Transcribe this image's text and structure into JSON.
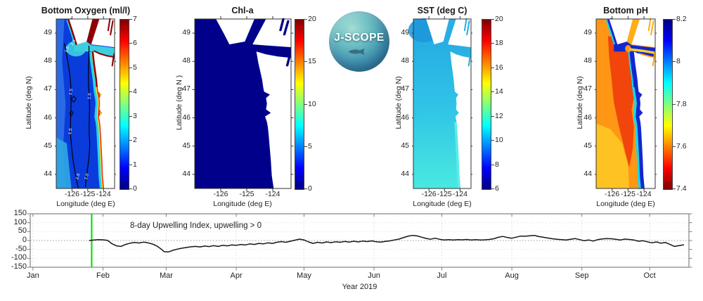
{
  "figure": {
    "background": "#ffffff"
  },
  "logo": {
    "label": "J-SCOPE"
  },
  "panels": [
    {
      "key": "oxygen",
      "title": "Bottom Oxygen (ml/l)",
      "ylabel": "Latitude (deg N)",
      "xlabel": "Longitude (deg E)",
      "yticks": [
        "49",
        "48",
        "47",
        "46",
        "45",
        "44"
      ],
      "xticks": [
        "-126",
        "-125",
        "-124"
      ],
      "colorbar": {
        "labels": [
          "7",
          "6",
          "5",
          "4",
          "3",
          "2",
          "1",
          "0"
        ],
        "min": 0,
        "max": 7,
        "colormap": "jet",
        "reversed": false
      },
      "contour_label": "1.5",
      "palette": {
        "deep": "#0a3cdc",
        "offshore": "#2f6fe6",
        "corner": "#2fa8e2",
        "shelf_cyan": "#24d6e8",
        "shelf_yellow": "#ffe22a",
        "coast_red": "#f03810",
        "north_darkred": "#8f0000",
        "strait": "#3ccfe0",
        "georgia": "#8f0000",
        "contour": "#000000",
        "contour_text": "#ffffff"
      }
    },
    {
      "key": "chl",
      "title": "Chl-a",
      "ylabel": "Latitude (deg N )",
      "xlabel": "Longitude (deg E)",
      "yticks": [
        "49",
        "48",
        "47",
        "46",
        "45",
        "44"
      ],
      "xticks": [
        "-126",
        "-125",
        "-124"
      ],
      "colorbar": {
        "labels": [
          "20",
          "15",
          "10",
          "5",
          "0"
        ],
        "min": 0,
        "max": 20,
        "colormap": "jet",
        "reversed": false
      },
      "palette": {
        "deep": "#00008b"
      }
    },
    {
      "key": "sst",
      "title": "SST (deg C)",
      "ylabel": "Latitude (deg N)",
      "xlabel": "Longitude (deg E)",
      "yticks": [
        "49",
        "48",
        "47",
        "46",
        "45",
        "44"
      ],
      "xticks": [
        "-126",
        "-125",
        "-124"
      ],
      "colorbar": {
        "labels": [
          "20",
          "18",
          "16",
          "14",
          "12",
          "10",
          "8",
          "6"
        ],
        "min": 6,
        "max": 20,
        "colormap": "jet",
        "reversed": false
      },
      "palette": {
        "north": "#23a5e4",
        "mid": "#31c6e6",
        "south": "#49e9e0",
        "northwest_patch": "#1d97da",
        "nearshore_south": "#5aece8",
        "channels": "#29ade6"
      }
    },
    {
      "key": "ph",
      "title": "Bottom pH",
      "ylabel": "Latitude (deg N)",
      "xlabel": "Longitude (deg E)",
      "yticks": [
        "49",
        "48",
        "47",
        "46",
        "45",
        "44"
      ],
      "xticks": [
        "-126",
        "-125",
        "-124"
      ],
      "colorbar": {
        "labels": [
          "8.2",
          "8",
          "7.8",
          "7.6",
          "7.4"
        ],
        "min": 7.4,
        "max": 8.2,
        "colormap": "jet",
        "reversed": true
      },
      "palette": {
        "offshore_orange": "#ff9714",
        "southwest_yellow": "#ffc424",
        "mid_red": "#f1450c",
        "transition_cyan": "#18d8e8",
        "coast_blue": "#1326cf",
        "strait_stripe": "#ffd224",
        "georgia": "#ffae18"
      }
    }
  ],
  "timeseries": {
    "title": "8-day Upwelling Index, upwelling > 0",
    "xlabel": "Year 2019",
    "yticks": [
      "150",
      "100",
      "50",
      "0",
      "-50",
      "-100",
      "-150"
    ],
    "months": [
      "Jan",
      "Feb",
      "Mar",
      "Apr",
      "May",
      "Jun",
      "Jul",
      "Aug",
      "Sep",
      "Oct"
    ],
    "line_color": "#151515",
    "marker_line_color": "#0ae00a",
    "grid_color": "#d8d8ec",
    "zero_line_color": "#9a9a9a",
    "axis_color": "#808080"
  },
  "chart_data": [
    {
      "type": "heatmap",
      "title": "Bottom Oxygen (ml/l)",
      "xlabel": "Longitude (deg E)",
      "ylabel": "Latitude (deg N)",
      "x_range": [
        -127,
        -123.3
      ],
      "y_range": [
        43.5,
        49.5
      ],
      "x_ticks": [
        -126,
        -125,
        -124
      ],
      "y_ticks": [
        49,
        48,
        47,
        46,
        45,
        44
      ],
      "colorbar_range": [
        0,
        7
      ],
      "colorbar_ticks": [
        0,
        1,
        2,
        3,
        4,
        5,
        6,
        7
      ],
      "colormap": "jet",
      "contour_level_labeled": 1.5,
      "regions": {
        "offshore_deep": "1-1.5 ml/l (blue, below 1.5 contour)",
        "mid_shelf": "2-3 ml/l (cyan band)",
        "shallow_coast": "5-7 ml/l (red/dark-red fringe)",
        "strait_of_georgia_and_fjords": "~7 ml/l (dark red)",
        "strait_of_juan_de_fuca": "2-3 ml/l (cyan/green)"
      }
    },
    {
      "type": "heatmap",
      "title": "Chl-a",
      "xlabel": "Longitude (deg E)",
      "ylabel": "Latitude (deg N)",
      "x_range": [
        -127,
        -123.3
      ],
      "y_range": [
        43.5,
        49.5
      ],
      "x_ticks": [
        -126,
        -125,
        -124
      ],
      "y_ticks": [
        49,
        48,
        47,
        46,
        45,
        44
      ],
      "colorbar_range": [
        0,
        20
      ],
      "colorbar_ticks": [
        0,
        5,
        10,
        15,
        20
      ],
      "colormap": "jet",
      "regions": {
        "all_water": "~0 (uniform dark navy blue everywhere)"
      }
    },
    {
      "type": "heatmap",
      "title": "SST (deg C)",
      "xlabel": "Longitude (deg E)",
      "ylabel": "Latitude (deg N)",
      "x_range": [
        -127,
        -123.3
      ],
      "y_range": [
        43.5,
        49.5
      ],
      "x_ticks": [
        -126,
        -125,
        -124
      ],
      "y_ticks": [
        49,
        48,
        47,
        46,
        45,
        44
      ],
      "colorbar_range": [
        6,
        20
      ],
      "colorbar_ticks": [
        6,
        8,
        10,
        12,
        14,
        16,
        18,
        20
      ],
      "colormap": "jet",
      "regions": {
        "north": "~9-9.5 C (light blue)",
        "south": "~10.5-11 C (cyan)",
        "pattern": "smooth north-to-south warming gradient"
      }
    },
    {
      "type": "heatmap",
      "title": "Bottom pH",
      "xlabel": "Longitude (deg E)",
      "ylabel": "Latitude (deg N)",
      "x_range": [
        -127,
        -123.3
      ],
      "y_range": [
        43.5,
        49.5
      ],
      "x_ticks": [
        -126,
        -125,
        -124
      ],
      "y_ticks": [
        49,
        48,
        47,
        46,
        45,
        44
      ],
      "colorbar_range": [
        7.4,
        8.2
      ],
      "colorbar_ticks": [
        7.4,
        7.6,
        7.8,
        8.0,
        8.2
      ],
      "colormap": "jet-reversed",
      "regions": {
        "offshore_deep": "~7.55-7.6 (red/orange)",
        "southwest": "~7.65 (yellow-orange)",
        "nearshore_shallow": "~8.1-8.2 (dark blue band along coast)",
        "transition": "~7.8-8.0 (cyan strip)",
        "strait_of_juan_de_fuca": "blue with ~7.6-7.7 yellow core stripe"
      }
    },
    {
      "type": "line",
      "title": "8-day Upwelling Index, upwelling > 0",
      "xlabel": "Year 2019",
      "x_unit": "day_of_year_2019",
      "x_axis_range_days": [
        -1.2,
        290.4
      ],
      "ylim": [
        -150,
        150
      ],
      "y_ticks": [
        150,
        100,
        50,
        0,
        -50,
        -100,
        -150
      ],
      "month_ticks": [
        {
          "label": "Jan",
          "day": 0
        },
        {
          "label": "Feb",
          "day": 31
        },
        {
          "label": "Mar",
          "day": 59
        },
        {
          "label": "Apr",
          "day": 90
        },
        {
          "label": "May",
          "day": 120
        },
        {
          "label": "Jun",
          "day": 151
        },
        {
          "label": "Jul",
          "day": 181
        },
        {
          "label": "Aug",
          "day": 212
        },
        {
          "label": "Sep",
          "day": 243
        },
        {
          "label": "Oct",
          "day": 273
        }
      ],
      "green_marker_line_day": 26,
      "zero_reference_line": 0,
      "points": [
        [
          25,
          0
        ],
        [
          27,
          3
        ],
        [
          29,
          5
        ],
        [
          31,
          4
        ],
        [
          33,
          1
        ],
        [
          35,
          -18
        ],
        [
          37,
          -30
        ],
        [
          39,
          -33
        ],
        [
          41,
          -22
        ],
        [
          43,
          -15
        ],
        [
          45,
          -11
        ],
        [
          47,
          -14
        ],
        [
          49,
          -9
        ],
        [
          51,
          -13
        ],
        [
          53,
          -20
        ],
        [
          55,
          -32
        ],
        [
          57,
          -50
        ],
        [
          58,
          -62
        ],
        [
          60,
          -64
        ],
        [
          62,
          -55
        ],
        [
          64,
          -48
        ],
        [
          66,
          -43
        ],
        [
          68,
          -39
        ],
        [
          70,
          -35
        ],
        [
          72,
          -33
        ],
        [
          74,
          -36
        ],
        [
          76,
          -31
        ],
        [
          78,
          -34
        ],
        [
          80,
          -29
        ],
        [
          82,
          -33
        ],
        [
          84,
          -27
        ],
        [
          86,
          -30
        ],
        [
          88,
          -25
        ],
        [
          90,
          -27
        ],
        [
          92,
          -22
        ],
        [
          94,
          -25
        ],
        [
          96,
          -19
        ],
        [
          98,
          -22
        ],
        [
          100,
          -16
        ],
        [
          102,
          -19
        ],
        [
          104,
          -13
        ],
        [
          106,
          -16
        ],
        [
          108,
          -10
        ],
        [
          110,
          -6
        ],
        [
          112,
          -10
        ],
        [
          114,
          -4
        ],
        [
          116,
          2
        ],
        [
          118,
          8
        ],
        [
          120,
          3
        ],
        [
          122,
          -8
        ],
        [
          124,
          -16
        ],
        [
          126,
          -10
        ],
        [
          128,
          -14
        ],
        [
          130,
          -8
        ],
        [
          132,
          -12
        ],
        [
          134,
          -7
        ],
        [
          136,
          -10
        ],
        [
          138,
          -5
        ],
        [
          140,
          -9
        ],
        [
          142,
          -4
        ],
        [
          144,
          -8
        ],
        [
          146,
          -3
        ],
        [
          148,
          -6
        ],
        [
          150,
          -2
        ],
        [
          152,
          -7
        ],
        [
          154,
          -9
        ],
        [
          156,
          -5
        ],
        [
          158,
          -2
        ],
        [
          160,
          3
        ],
        [
          162,
          8
        ],
        [
          164,
          16
        ],
        [
          166,
          24
        ],
        [
          168,
          29
        ],
        [
          170,
          26
        ],
        [
          172,
          19
        ],
        [
          174,
          12
        ],
        [
          176,
          7
        ],
        [
          178,
          13
        ],
        [
          180,
          7
        ],
        [
          182,
          3
        ],
        [
          184,
          5
        ],
        [
          186,
          3
        ],
        [
          188,
          5
        ],
        [
          190,
          4
        ],
        [
          192,
          6
        ],
        [
          194,
          3
        ],
        [
          196,
          5
        ],
        [
          198,
          3
        ],
        [
          200,
          4
        ],
        [
          202,
          6
        ],
        [
          204,
          10
        ],
        [
          206,
          18
        ],
        [
          208,
          23
        ],
        [
          210,
          17
        ],
        [
          212,
          13
        ],
        [
          214,
          19
        ],
        [
          216,
          25
        ],
        [
          218,
          24
        ],
        [
          220,
          27
        ],
        [
          222,
          29
        ],
        [
          224,
          22
        ],
        [
          226,
          18
        ],
        [
          228,
          14
        ],
        [
          230,
          10
        ],
        [
          232,
          7
        ],
        [
          234,
          5
        ],
        [
          236,
          3
        ],
        [
          238,
          7
        ],
        [
          240,
          11
        ],
        [
          242,
          5
        ],
        [
          244,
          -1
        ],
        [
          246,
          3
        ],
        [
          248,
          -3
        ],
        [
          250,
          5
        ],
        [
          252,
          9
        ],
        [
          254,
          11
        ],
        [
          256,
          10
        ],
        [
          258,
          7
        ],
        [
          260,
          3
        ],
        [
          262,
          8
        ],
        [
          264,
          6
        ],
        [
          266,
          3
        ],
        [
          268,
          -4
        ],
        [
          270,
          -1
        ],
        [
          272,
          -7
        ],
        [
          274,
          -13
        ],
        [
          276,
          -8
        ],
        [
          278,
          -15
        ],
        [
          280,
          -11
        ],
        [
          282,
          -22
        ],
        [
          284,
          -33
        ],
        [
          286,
          -29
        ],
        [
          288,
          -24
        ]
      ]
    }
  ]
}
